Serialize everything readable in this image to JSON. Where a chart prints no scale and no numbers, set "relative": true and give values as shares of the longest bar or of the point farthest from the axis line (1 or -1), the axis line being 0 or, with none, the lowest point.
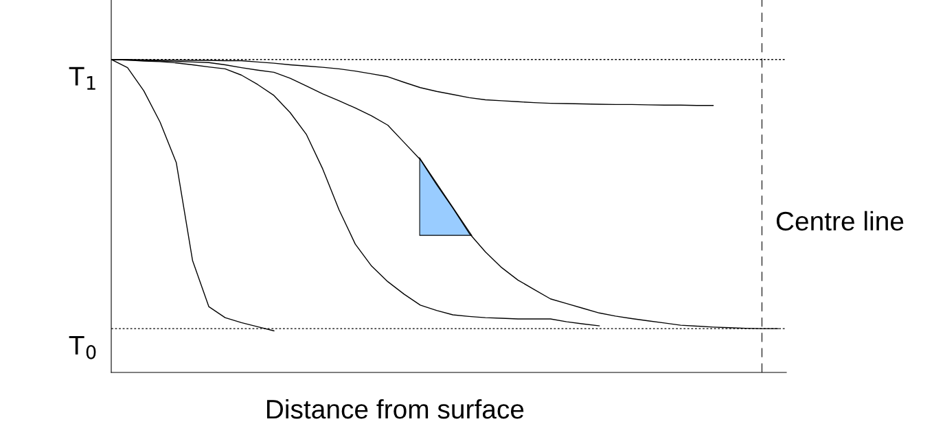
{
  "chart_data": {
    "type": "line",
    "relative": true,
    "xlabel": "Distance from surface",
    "line_style": "solid",
    "categories": [
      null,
      null,
      null,
      null,
      null,
      null,
      null,
      null,
      null,
      null,
      null,
      null,
      null,
      null,
      null,
      null,
      null,
      null,
      null,
      null,
      null,
      null,
      null,
      null,
      null,
      null,
      null,
      null,
      null,
      null,
      null,
      null,
      null,
      null,
      null,
      null,
      null,
      null,
      null,
      null,
      null,
      null
    ],
    "series": [
      {
        "color": "#000000",
        "values": [
          1.0,
          0.974,
          0.9,
          0.8,
          0.67,
          0.357,
          0.21,
          0.175,
          0.159,
          0.146,
          0.133,
          null,
          null,
          null,
          null,
          null,
          null,
          null,
          null,
          null,
          null,
          null,
          null,
          null,
          null,
          null,
          null,
          null,
          null,
          null,
          null,
          null,
          null,
          null,
          null,
          null,
          null,
          null,
          null,
          null,
          null,
          null
        ]
      },
      {
        "color": "#000000",
        "values": [
          1.0,
          0.998,
          0.995,
          0.993,
          0.989,
          0.983,
          0.976,
          0.97,
          0.95,
          0.92,
          0.885,
          0.83,
          0.76,
          0.65,
          0.52,
          0.41,
          0.34,
          0.29,
          0.25,
          0.215,
          0.198,
          0.184,
          0.179,
          0.175,
          0.173,
          0.171,
          0.171,
          0.171,
          0.162,
          0.155,
          0.149,
          null,
          null,
          null,
          null,
          null,
          null,
          null,
          null,
          null,
          null,
          null
        ]
      },
      {
        "color": "#000000",
        "values": [
          1.0,
          0.998,
          0.997,
          0.995,
          0.994,
          0.992,
          0.99,
          0.983,
          0.974,
          0.966,
          0.959,
          0.94,
          0.915,
          0.89,
          0.868,
          0.845,
          0.82,
          0.79,
          0.735,
          0.68,
          0.6,
          0.525,
          0.445,
          0.385,
          0.335,
          0.295,
          0.265,
          0.235,
          0.22,
          0.205,
          0.19,
          0.18,
          0.172,
          0.165,
          0.158,
          0.151,
          0.148,
          0.145,
          0.143,
          0.141,
          0.14,
          0.14
        ]
      },
      {
        "color": "#000000",
        "values": [
          1.0,
          1.0,
          0.999,
          0.998,
          0.998,
          0.997,
          0.997,
          0.996,
          0.996,
          0.992,
          0.988,
          0.983,
          0.979,
          0.975,
          0.97,
          0.963,
          0.954,
          0.945,
          0.927,
          0.91,
          0.898,
          0.888,
          0.878,
          0.871,
          0.868,
          0.865,
          0.862,
          0.86,
          0.859,
          0.858,
          0.857,
          0.856,
          0.856,
          0.855,
          0.854,
          0.854,
          0.853,
          0.853,
          null,
          null,
          null,
          null
        ]
      }
    ],
    "ref_lines": [
      {
        "axis": "y",
        "value": 1.0,
        "label": "T$_{1}$",
        "color": "#000000",
        "line_style": "dotted"
      },
      {
        "axis": "y",
        "value": 0.14,
        "label": "T$_{0}$",
        "color": "#000000",
        "line_style": "dotted"
      }
    ],
    "annotations": [
      "Centre line"
    ]
  }
}
